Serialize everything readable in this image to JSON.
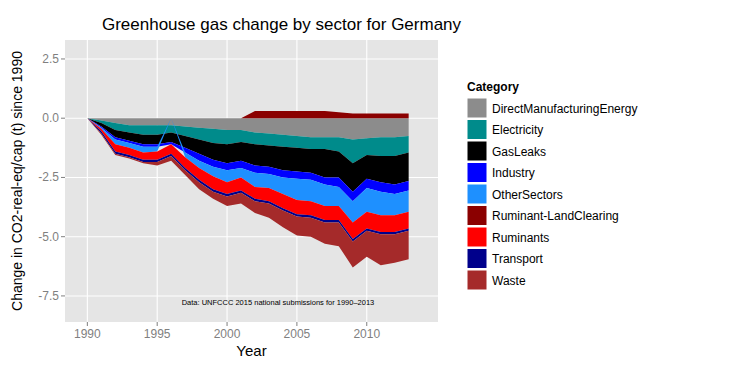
{
  "chart_data": {
    "type": "area",
    "title": "Greenhouse gas change by sector for Germany",
    "x_label": "Year",
    "y_label": "Change in CO2-real-eq/cap (t) since 1990",
    "annotation": "Data: UNFCCC 2015 national submissions for 1990–2013",
    "legend_title": "Category",
    "legend": "right",
    "stacked": true,
    "grid": true,
    "x": [
      1990,
      1991,
      1992,
      1993,
      1994,
      1995,
      1996,
      1997,
      1998,
      1999,
      2000,
      2001,
      2002,
      2003,
      2004,
      2005,
      2006,
      2007,
      2008,
      2009,
      2010,
      2011,
      2012,
      2013
    ],
    "xlim": [
      1988.4,
      2015.1
    ],
    "xticks": [
      1990,
      1995,
      2000,
      2005,
      2010
    ],
    "ylim": [
      -8.6,
      3.3
    ],
    "yticks": [
      {
        "value": -7.5,
        "label": "-7.5"
      },
      {
        "value": -5,
        "label": "-5.0"
      },
      {
        "value": -2.5,
        "label": "-2.5"
      },
      {
        "value": 0,
        "label": "0.0"
      },
      {
        "value": 2.5,
        "label": "2.5"
      }
    ],
    "series": [
      {
        "name": "DirectManufacturingEnergy",
        "color": "#8c8c8c",
        "values": [
          0,
          -0.1,
          -0.2,
          -0.3,
          -0.3,
          -0.3,
          -0.3,
          -0.35,
          -0.4,
          -0.45,
          -0.5,
          -0.5,
          -0.6,
          -0.65,
          -0.7,
          -0.75,
          -0.8,
          -0.8,
          -0.8,
          -0.9,
          -0.85,
          -0.8,
          -0.8,
          -0.75
        ]
      },
      {
        "name": "Electricity",
        "color": "#008b8b",
        "values": [
          0,
          -0.1,
          -0.3,
          -0.3,
          -0.4,
          -0.4,
          -0.3,
          -0.4,
          -0.5,
          -0.6,
          -0.6,
          -0.5,
          -0.5,
          -0.5,
          -0.5,
          -0.5,
          -0.5,
          -0.5,
          -0.6,
          -1.0,
          -0.7,
          -0.8,
          -0.8,
          -0.7
        ]
      },
      {
        "name": "GasLeaks",
        "color": "#000000",
        "values": [
          0,
          -0.15,
          -0.3,
          -0.35,
          -0.4,
          -0.4,
          -0.4,
          -0.5,
          -0.6,
          -0.7,
          -0.8,
          -0.8,
          -0.9,
          -0.9,
          -1.0,
          -1.0,
          -1.0,
          -1.2,
          -1.1,
          -1.2,
          -1.0,
          -1.1,
          -1.2,
          -1.2
        ]
      },
      {
        "name": "Industry",
        "color": "#0000ff",
        "values": [
          0,
          -0.05,
          -0.1,
          -0.1,
          -0.1,
          -0.1,
          -0.1,
          -0.2,
          -0.3,
          -0.3,
          -0.3,
          -0.3,
          -0.3,
          -0.3,
          -0.3,
          -0.3,
          -0.3,
          -0.3,
          -0.4,
          -0.4,
          -0.4,
          -0.4,
          -0.4,
          -0.4
        ]
      },
      {
        "name": "OtherSectors",
        "color": "#1e90ff",
        "values": [
          0,
          -0.05,
          -0.2,
          -0.2,
          -0.25,
          -0.2,
          0,
          -0.2,
          -0.3,
          -0.4,
          -0.5,
          -0.4,
          -0.6,
          -0.6,
          -0.7,
          -0.9,
          -0.9,
          -0.9,
          -0.8,
          -0.9,
          -1.0,
          -1.0,
          -0.9,
          -0.9
        ]
      },
      {
        "name": "Ruminant-LandClearing",
        "color": "#8b0000",
        "values": [
          0,
          0,
          0,
          0,
          0,
          0,
          0,
          0,
          0,
          0,
          0,
          0,
          0.3,
          0.3,
          0.3,
          0.3,
          0.3,
          0.3,
          0.25,
          0.2,
          0.2,
          0.2,
          0.2,
          0.2
        ]
      },
      {
        "name": "Ruminants",
        "color": "#ff0000",
        "values": [
          0,
          -0.1,
          -0.3,
          -0.3,
          -0.3,
          -0.35,
          -0.4,
          -0.45,
          -0.5,
          -0.55,
          -0.5,
          -0.55,
          -0.5,
          -0.55,
          -0.6,
          -0.6,
          -0.6,
          -0.6,
          -0.6,
          -0.7,
          -0.7,
          -0.7,
          -0.7,
          -0.7
        ]
      },
      {
        "name": "Transport",
        "color": "#00008b",
        "values": [
          0,
          -0.1,
          -0.1,
          -0.1,
          -0.1,
          -0.1,
          -0.1,
          -0.1,
          -0.1,
          -0.1,
          -0.1,
          -0.1,
          -0.1,
          -0.1,
          -0.1,
          -0.1,
          -0.1,
          -0.1,
          -0.1,
          -0.1,
          -0.1,
          -0.1,
          -0.1,
          -0.1
        ]
      },
      {
        "name": "Waste",
        "color": "#a52a2a",
        "values": [
          0,
          -0.05,
          -0.05,
          -0.05,
          -0.05,
          -0.15,
          -0.2,
          -0.2,
          -0.3,
          -0.3,
          -0.4,
          -0.45,
          -0.5,
          -0.6,
          -0.7,
          -0.8,
          -0.8,
          -0.9,
          -1.0,
          -1.1,
          -1.1,
          -1.3,
          -1.2,
          -1.2
        ]
      }
    ]
  }
}
